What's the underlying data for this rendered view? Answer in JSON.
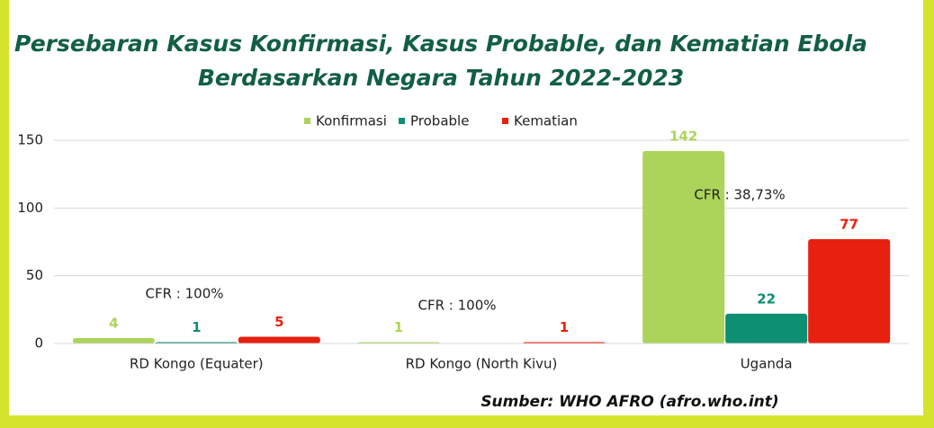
{
  "chart_data": {
    "type": "bar",
    "title": [
      "Persebaran Kasus Konfirmasi, Kasus Probable, dan Kematian Ebola",
      "Berdasarkan Negara Tahun 2022-2023"
    ],
    "categories": [
      "RD Kongo (Equater)",
      "RD Kongo (North Kivu)",
      "Uganda"
    ],
    "series": [
      {
        "name": "Konfirmasi",
        "color": "#acd45a",
        "values": [
          4,
          1,
          142
        ]
      },
      {
        "name": "Probable",
        "color": "#0d8f74",
        "values": [
          1,
          null,
          22
        ]
      },
      {
        "name": "Kematian",
        "color": "#e8200f",
        "values": [
          5,
          1,
          77
        ]
      }
    ],
    "ylim": [
      0,
      150
    ],
    "yticks": [
      0,
      50,
      100,
      150
    ],
    "grid": true,
    "legend": "top",
    "annotations": [
      "CFR : 100%",
      "CFR : 100%",
      "CFR : 38,73%"
    ],
    "source": "Sumber: WHO AFRO (afro.who.int)"
  }
}
